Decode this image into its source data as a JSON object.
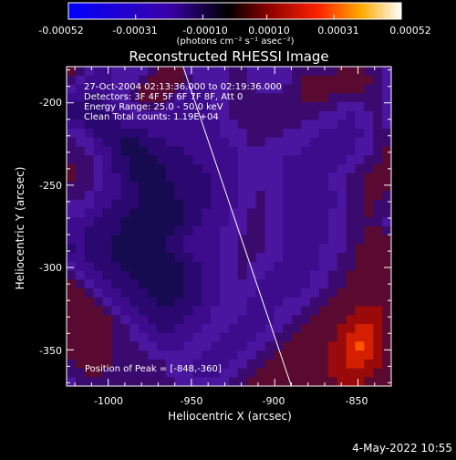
{
  "colorbar": {
    "tick_labels": [
      "-0.00052",
      "-0.00031",
      "-0.00010",
      "0.00010",
      "0.00031",
      "0.00052"
    ],
    "units": "(photons cm⁻² s⁻¹ asec⁻²)"
  },
  "info": {
    "time_range": "27-Oct-2004 02:13:36.000 to 02:19:36.000",
    "detectors": "Detectors: 3F 4F 5F 6F 7F 8F, Att 0",
    "energy": "Energy Range: 25.0 - 50.0 keV",
    "clean": "Clean      Total counts: 1.19E+04",
    "peak": "Position of Peak = [-848,-360]"
  },
  "footer": {
    "date": "4-May-2022 10:55"
  },
  "chart_data": {
    "type": "heatmap",
    "title": "Reconstructed RHESSI Image",
    "xlabel": "Heliocentric X (arcsec)",
    "ylabel": "Heliocentric Y (arcsec)",
    "xlim": [
      -1025,
      -830
    ],
    "ylim": [
      -372,
      -178
    ],
    "x_ticks": [
      -1000,
      -950,
      -900,
      -850
    ],
    "y_ticks": [
      -200,
      -250,
      -300,
      -350
    ],
    "colorbar_range": [
      -0.00052,
      0.00052
    ],
    "limb_line": [
      [
        -955,
        -178
      ],
      [
        -890,
        -372
      ]
    ],
    "peak": [
      -848,
      -360
    ],
    "grid_cols": 36,
    "grid_rows": 36,
    "intensity_grid": [
      "FEDCCDDDDEFFFDDDDDEEDDDDDEEEEEFFFEED",
      "EDCCCDDDEFFFFEDDDDEEDDDDDEFFFFFFFFED",
      "DCCCCDDEFFFFEDCCDDEEEDDDEEFFFFFFFEED",
      "CCBBCDDEFFFEDCCCDDEEEEEEEEFFFEEEEEED",
      "BBBBCCDDEEEDCCCCDDEEEEEEEEEEEEDDDEED",
      "BBBBBCCDDDDCCCCCDDEEEEEEEEEEDDDCDDED",
      "CCBBBBCCCCCCCCCCCDDEEEEEEEDDDDCCDDED",
      "DDCBBBBBBCCCCCCCCDDDEEEEDDDDCCCCCDEE",
      "EDDCBBAABBBCCCCCCCDDEEDDDDDCCCCCDDEE",
      "EEDCCBAAABBBBCCCCCCDDDDDDDCCCCCCDDEF",
      "EEEDCBBAAABBBBCCCCCDDDDDCCCCCCCDDEEF",
      "FEEDCBBAAAABBBBCCCCDDDDDCCCCCCDDEEFF",
      "FEEDCCBAAAABBBBBCCCDDDDDCCCCCDDEEFFF",
      "EEEDCCBBAAAABBBBCCCDDDDDCCCCCDDEEFFF",
      "EEDCCCBBAAAABBBBCCCDDEDDCCCCCCDEEFFE",
      "DDDCCBBBAAAAABBBCCCDDEDDCCCCCCDEEFEE",
      "DDCCBBBAAAAAABBCCCDDEEDDCCCCCDDEEFEE",
      "CCCBBBAAAAAAABBCCCDDEEDDCCCCCDDEEEED",
      "CCBBBBAAAAAABBCCCDDDEEDDCCCCCDDEEFFE",
      "CCBBBAAAAAABBCCCCDDEEEDDCCCCCDDEEFFF",
      "BCBBBAAAAAABBCCCCDDEEEDDCCCCDDDEFFFF",
      "CCBBBAAAAAAABBCCCDDEEDDDCCCCDDEEFFFF",
      "DCCBBBAAAAAAABBCCDDEDDDCCCCCDDEEFFFF",
      "EDCCBBBAAAAAABBCCDDEDDCCCCCDDEEFFFFF",
      "FEDCCBBBAAAAABBCCDDDDCCCCCCDDEEFFFFF",
      "FFEDCCBBBAAAABBCCDDDDCCCCCDDEEFFFFFF",
      "FFFEDCCBBBAABBBCCDDDCCCCDDDEEFFFFFFF",
      "FFFFEDCCBBBBBBCCDDDDCCCDDDEEFFFFGGGF",
      "FFFFFEDCCBBBBCCCDDDCCCCDDEEFFFFGGGGF",
      "FFFFFEEDCCBBCCCDDDCCCCDDEEFFFFGGHHGF",
      "FFFFFEEDDCCCCCDDDCCCCDDEEFFFFFGHHHGF",
      "FFFFFEEEDDCCCDDDCCCCDDEEFFFFFGGHIHGF",
      "FFFFFEEEEDDDDDDCCCCDDEEFFFFFFGGHHHGF",
      "EFFFFEEEEEEDDDCCCCDDEEFFFFFFFGGHHGGF",
      "EEFFEEEEEEEDDDCCCDDEEFFFFFFFFGGGGGFF",
      "DEEEEEEEEEEEDDDDDDEEFFFFFFFFFFGGGFFF"
    ]
  }
}
